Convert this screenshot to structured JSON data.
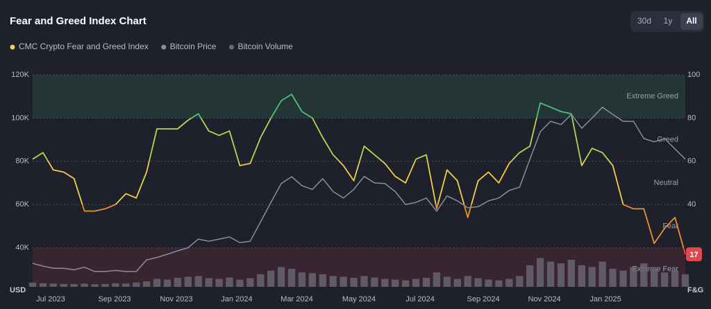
{
  "chart_data": {
    "type": "line",
    "title": "Fear and Greed Index Chart",
    "range_buttons": [
      "30d",
      "1y",
      "All"
    ],
    "active_range": "All",
    "y_unit": "USD",
    "y2_unit": "F&G",
    "xlim": [
      0,
      63
    ],
    "xticks": [
      {
        "value": 1.74,
        "label": "Jul 2023"
      },
      {
        "value": 7.91,
        "label": "Sep 2023"
      },
      {
        "value": 13.87,
        "label": "Nov 2023"
      },
      {
        "value": 19.7,
        "label": "Jan 2024"
      },
      {
        "value": 25.5,
        "label": "Mar 2024"
      },
      {
        "value": 31.5,
        "label": "May 2024"
      },
      {
        "value": 37.4,
        "label": "Jul 2024"
      },
      {
        "value": 43.5,
        "label": "Sep 2024"
      },
      {
        "value": 49.4,
        "label": "Nov 2024"
      },
      {
        "value": 55.3,
        "label": "Jan 2025"
      }
    ],
    "ylim": [
      20000,
      120000
    ],
    "yticks": [
      {
        "value": 40000,
        "label": "40K"
      },
      {
        "value": 60000,
        "label": "60K"
      },
      {
        "value": 80000,
        "label": "80K"
      },
      {
        "value": 100000,
        "label": "100K"
      },
      {
        "value": 120000,
        "label": "120K"
      }
    ],
    "y2lim": [
      0,
      100
    ],
    "y2ticks": [
      40,
      60,
      80,
      100
    ],
    "y3lim": [
      0,
      600
    ],
    "grid": true,
    "zones": [
      {
        "name": "Extreme Fear",
        "range": [
          0,
          20
        ],
        "color": "#e0484f",
        "shaded": true
      },
      {
        "name": "Fear",
        "range": [
          20,
          40
        ],
        "color": "#e8922e",
        "shaded": false
      },
      {
        "name": "Neutral",
        "range": [
          40,
          60
        ],
        "color": "#f0cf45",
        "shaded": false
      },
      {
        "name": "Greed",
        "range": [
          60,
          80
        ],
        "color": "#b8d64a",
        "shaded": false
      },
      {
        "name": "Extreme Greed",
        "range": [
          80,
          100
        ],
        "color": "#4fc07a",
        "shaded": true
      }
    ],
    "series": [
      {
        "name": "CMC Crypto Fear and Greed Index",
        "color": "#f0d54a",
        "axis": "y2",
        "kind": "line",
        "values": [
          61,
          64,
          56,
          55,
          52,
          37,
          37,
          38,
          40,
          45,
          43,
          55,
          75,
          75,
          75,
          79,
          82,
          74,
          72,
          74,
          58,
          59,
          71,
          80,
          88,
          91,
          83,
          80,
          71,
          63,
          58,
          51,
          67,
          63,
          59,
          53,
          50,
          61,
          63,
          38,
          56,
          51,
          34,
          51,
          55,
          50,
          59,
          64,
          67,
          87,
          85,
          83,
          82,
          58,
          66,
          64,
          58,
          40,
          38,
          38,
          22,
          29,
          34,
          17
        ]
      },
      {
        "name": "Bitcoin Price",
        "color": "#8a8f9c",
        "axis": "y",
        "kind": "line",
        "values": [
          32800,
          31500,
          30500,
          30500,
          29800,
          31000,
          29000,
          29000,
          29500,
          29000,
          29000,
          34400,
          35500,
          37000,
          38600,
          40000,
          44000,
          43000,
          44000,
          45000,
          42400,
          43000,
          52000,
          61000,
          69700,
          72900,
          68700,
          67000,
          72000,
          66000,
          63000,
          67000,
          73000,
          70000,
          69700,
          66000,
          60000,
          61000,
          63000,
          56900,
          64000,
          61700,
          58500,
          59000,
          61700,
          63000,
          66500,
          68000,
          81000,
          93700,
          98500,
          97000,
          101700,
          95300,
          100000,
          105000,
          101700,
          98500,
          98500,
          90500,
          89000,
          90500,
          85700,
          81000
        ]
      },
      {
        "name": "Bitcoin Volume",
        "color": "#6b6878",
        "axis": "y3",
        "kind": "bar",
        "values": [
          12,
          10,
          9,
          8,
          8,
          9,
          7,
          8,
          10,
          9,
          12,
          15,
          22,
          20,
          25,
          28,
          30,
          24,
          22,
          26,
          20,
          24,
          35,
          45,
          55,
          50,
          40,
          38,
          35,
          30,
          28,
          25,
          30,
          26,
          22,
          20,
          18,
          22,
          25,
          40,
          28,
          22,
          30,
          24,
          20,
          18,
          22,
          30,
          60,
          80,
          70,
          65,
          75,
          60,
          55,
          70,
          50,
          45,
          55,
          65,
          50,
          40,
          45,
          35
        ]
      }
    ]
  }
}
